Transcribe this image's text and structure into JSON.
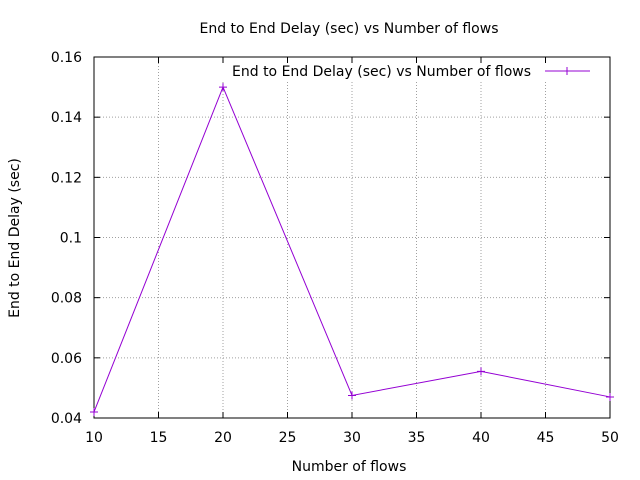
{
  "chart_data": {
    "type": "line",
    "title": "End to End Delay (sec) vs Number of flows",
    "xlabel": "Number of flows",
    "ylabel": "End to End Delay (sec)",
    "xlim": [
      10,
      50
    ],
    "ylim": [
      0.04,
      0.16
    ],
    "x_ticks": [
      "10",
      "15",
      "20",
      "25",
      "30",
      "35",
      "40",
      "45",
      "50"
    ],
    "y_ticks": [
      "0.04",
      "0.06",
      "0.08",
      "0.1",
      "0.12",
      "0.14",
      "0.16"
    ],
    "grid": true,
    "legend_position": "top-right",
    "series": [
      {
        "name": "End to End Delay (sec) vs Number of flows",
        "color": "#9400d3",
        "marker": "plus",
        "x": [
          10,
          20,
          30,
          40,
          50
        ],
        "y": [
          0.042,
          0.15,
          0.0475,
          0.0555,
          0.047
        ]
      }
    ]
  }
}
